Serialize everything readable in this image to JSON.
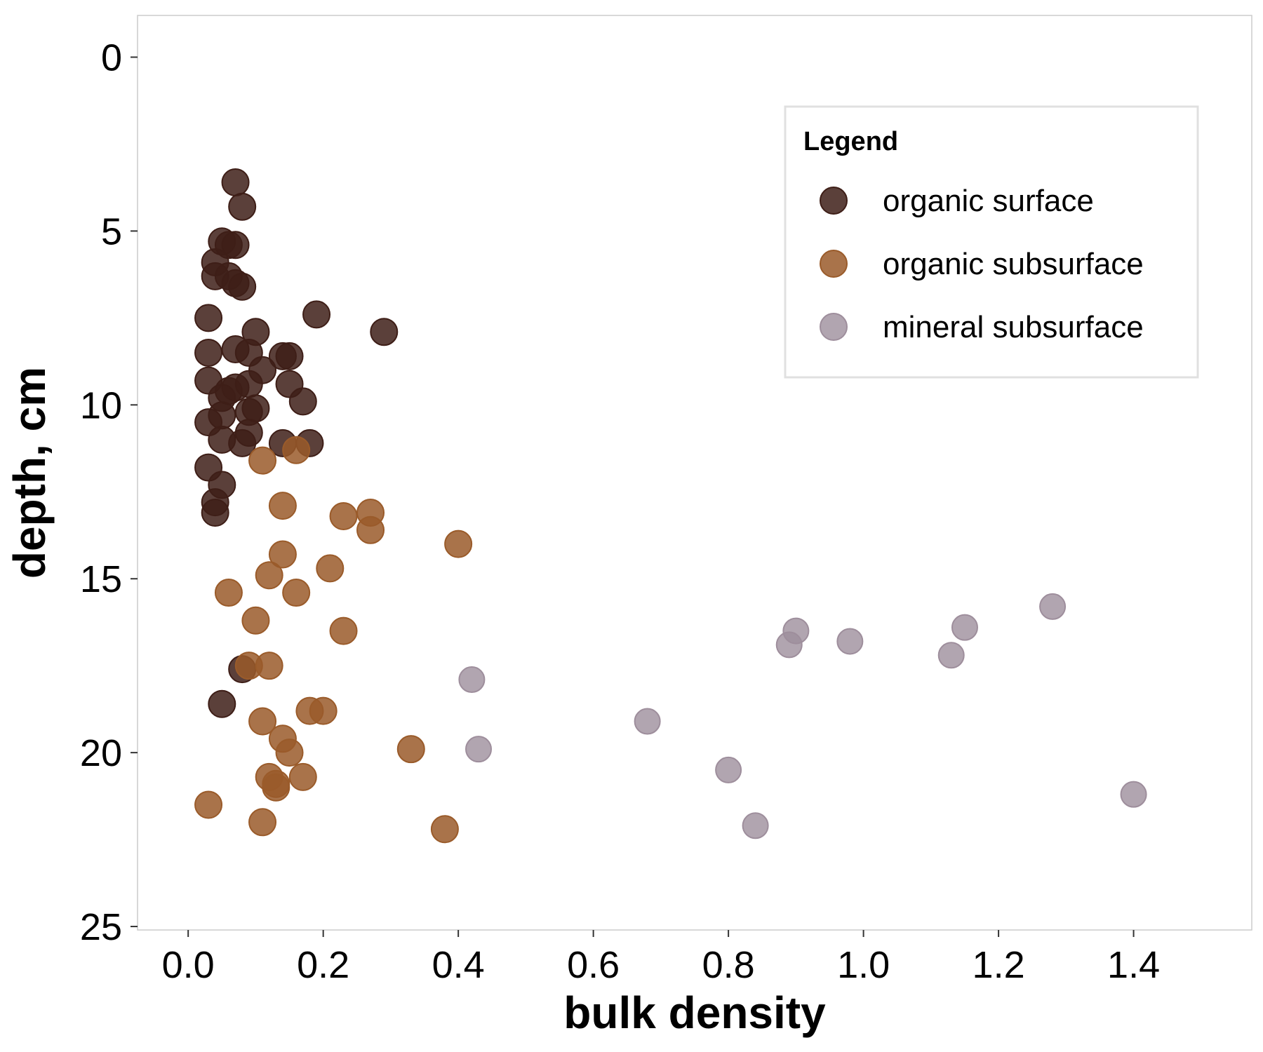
{
  "chart_data": {
    "type": "scatter",
    "xlabel": "bulk density",
    "ylabel": "depth, cm",
    "xlim": [
      -0.075,
      1.575
    ],
    "ylim": [
      25.1,
      -1.2
    ],
    "y_reversed": true,
    "x_ticks": [
      "0.0",
      "0.2",
      "0.4",
      "0.6",
      "0.8",
      "1.0",
      "1.2",
      "1.4"
    ],
    "x_tick_values": [
      0,
      0.2,
      0.4,
      0.6,
      0.8,
      1.0,
      1.2,
      1.4
    ],
    "y_ticks": [
      "0",
      "5",
      "10",
      "15",
      "20",
      "25"
    ],
    "y_tick_values": [
      0,
      5,
      10,
      15,
      20,
      25
    ],
    "grid": false,
    "legend": {
      "title": "Legend",
      "position": "top-right",
      "entries": [
        "organic surface",
        "organic subsurface",
        "mineral subsurface"
      ]
    },
    "series": [
      {
        "name": "organic surface",
        "color": "#3e1e17",
        "points": [
          [
            0.07,
            3.6
          ],
          [
            0.08,
            4.3
          ],
          [
            0.05,
            5.3
          ],
          [
            0.06,
            5.4
          ],
          [
            0.07,
            5.4
          ],
          [
            0.04,
            5.9
          ],
          [
            0.04,
            6.3
          ],
          [
            0.06,
            6.3
          ],
          [
            0.07,
            6.5
          ],
          [
            0.08,
            6.6
          ],
          [
            0.03,
            7.5
          ],
          [
            0.19,
            7.4
          ],
          [
            0.29,
            7.9
          ],
          [
            0.1,
            7.9
          ],
          [
            0.03,
            8.5
          ],
          [
            0.07,
            8.4
          ],
          [
            0.09,
            8.5
          ],
          [
            0.14,
            8.6
          ],
          [
            0.15,
            8.6
          ],
          [
            0.11,
            9.0
          ],
          [
            0.03,
            9.3
          ],
          [
            0.06,
            9.6
          ],
          [
            0.07,
            9.5
          ],
          [
            0.09,
            9.4
          ],
          [
            0.15,
            9.4
          ],
          [
            0.05,
            9.8
          ],
          [
            0.1,
            10.1
          ],
          [
            0.09,
            10.2
          ],
          [
            0.17,
            9.9
          ],
          [
            0.05,
            10.3
          ],
          [
            0.03,
            10.5
          ],
          [
            0.09,
            10.8
          ],
          [
            0.05,
            11.0
          ],
          [
            0.08,
            11.1
          ],
          [
            0.14,
            11.1
          ],
          [
            0.18,
            11.1
          ],
          [
            0.03,
            11.8
          ],
          [
            0.05,
            12.3
          ],
          [
            0.04,
            12.8
          ],
          [
            0.04,
            13.1
          ],
          [
            0.08,
            17.6
          ],
          [
            0.05,
            18.6
          ]
        ]
      },
      {
        "name": "organic subsurface",
        "color": "#9a5b2a",
        "points": [
          [
            0.11,
            11.6
          ],
          [
            0.16,
            11.3
          ],
          [
            0.14,
            12.9
          ],
          [
            0.23,
            13.2
          ],
          [
            0.27,
            13.1
          ],
          [
            0.27,
            13.6
          ],
          [
            0.4,
            14.0
          ],
          [
            0.14,
            14.3
          ],
          [
            0.21,
            14.7
          ],
          [
            0.12,
            14.9
          ],
          [
            0.06,
            15.4
          ],
          [
            0.16,
            15.4
          ],
          [
            0.1,
            16.2
          ],
          [
            0.23,
            16.5
          ],
          [
            0.09,
            17.5
          ],
          [
            0.12,
            17.5
          ],
          [
            0.18,
            18.8
          ],
          [
            0.2,
            18.8
          ],
          [
            0.11,
            19.1
          ],
          [
            0.14,
            19.6
          ],
          [
            0.15,
            20.0
          ],
          [
            0.33,
            19.9
          ],
          [
            0.12,
            20.7
          ],
          [
            0.13,
            20.9
          ],
          [
            0.13,
            21.0
          ],
          [
            0.17,
            20.7
          ],
          [
            0.03,
            21.5
          ],
          [
            0.11,
            22.0
          ],
          [
            0.38,
            22.2
          ]
        ]
      },
      {
        "name": "mineral subsurface",
        "color": "#9e8e9c",
        "points": [
          [
            0.42,
            17.9
          ],
          [
            0.43,
            19.9
          ],
          [
            0.68,
            19.1
          ],
          [
            0.8,
            20.5
          ],
          [
            0.84,
            22.1
          ],
          [
            0.89,
            16.9
          ],
          [
            0.9,
            16.5
          ],
          [
            0.98,
            16.8
          ],
          [
            1.13,
            17.2
          ],
          [
            1.15,
            16.4
          ],
          [
            1.28,
            15.8
          ],
          [
            1.4,
            21.2
          ]
        ]
      }
    ]
  }
}
